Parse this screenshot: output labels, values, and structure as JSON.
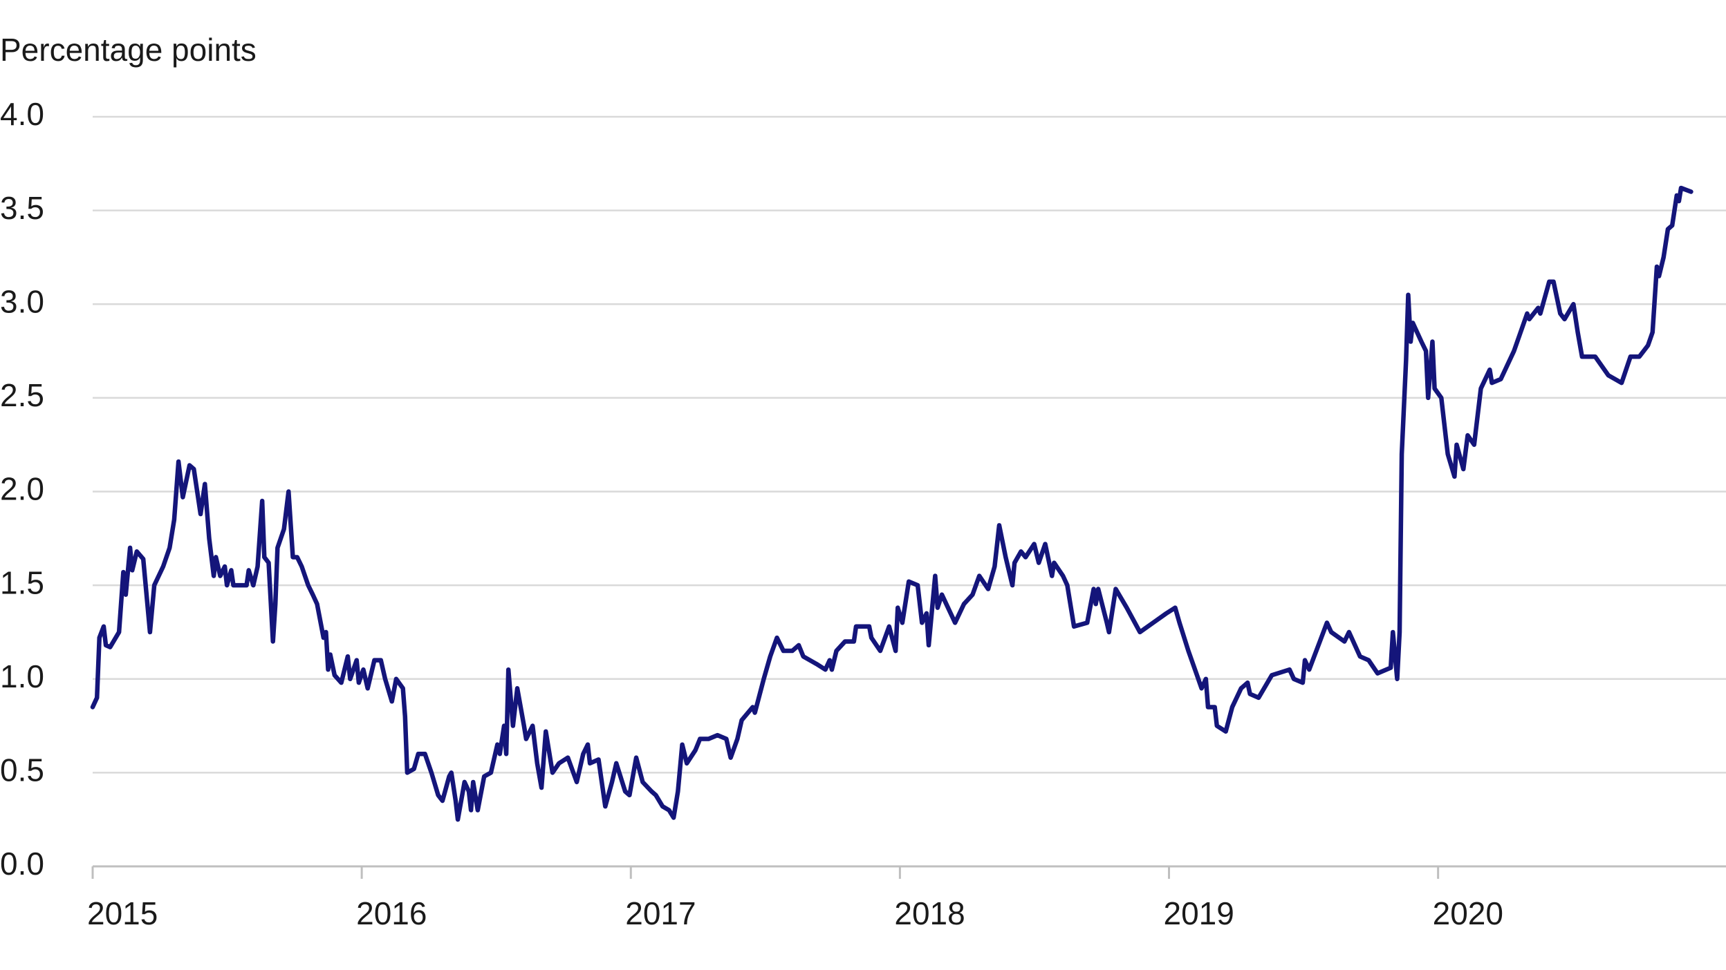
{
  "chart_data": {
    "type": "line",
    "y_axis_label": "Percentage points",
    "xlim": [
      2015,
      2021.07
    ],
    "xticks": [
      2015,
      2016,
      2017,
      2018,
      2019,
      2020
    ],
    "ylim": [
      0,
      4
    ],
    "yticks": [
      {
        "value": 0,
        "label": "0.0"
      },
      {
        "value": 0.5,
        "label": "0.5"
      },
      {
        "value": 1,
        "label": "1.0"
      },
      {
        "value": 1.5,
        "label": "1.5"
      },
      {
        "value": 2,
        "label": "2.0"
      },
      {
        "value": 2.5,
        "label": "2.5"
      },
      {
        "value": 3,
        "label": "3.0"
      },
      {
        "value": 3.5,
        "label": "3.5"
      },
      {
        "value": 4,
        "label": "4.0"
      }
    ],
    "grid": true,
    "x": [
      2015.0,
      2015.016,
      2015.025,
      2015.041,
      2015.049,
      2015.065,
      2015.098,
      2015.114,
      2015.123,
      2015.139,
      2015.147,
      2015.164,
      2015.188,
      2015.213,
      2015.229,
      2015.262,
      2015.286,
      2015.303,
      2015.319,
      2015.335,
      2015.36,
      2015.376,
      2015.401,
      2015.417,
      2015.433,
      2015.45,
      2015.458,
      2015.474,
      2015.491,
      2015.499,
      2015.515,
      2015.523,
      2015.548,
      2015.572,
      2015.58,
      2015.597,
      2015.613,
      2015.63,
      2015.638,
      2015.654,
      2015.67,
      2015.679,
      2015.687,
      2015.711,
      2015.728,
      2015.744,
      2015.76,
      2015.777,
      2015.801,
      2015.818,
      2015.834,
      2015.858,
      2015.867,
      2015.875,
      2015.883,
      2015.899,
      2015.924,
      2015.948,
      2015.957,
      2015.981,
      2015.989,
      2016.006,
      2016.022,
      2016.047,
      2016.071,
      2016.087,
      2016.112,
      2016.128,
      2016.153,
      2016.161,
      2016.169,
      2016.194,
      2016.21,
      2016.235,
      2016.259,
      2016.284,
      2016.3,
      2016.325,
      2016.333,
      2016.349,
      2016.357,
      2016.382,
      2016.398,
      2016.406,
      2016.414,
      2016.431,
      2016.455,
      2016.48,
      2016.504,
      2016.513,
      2016.529,
      2016.537,
      2016.545,
      2016.562,
      2016.578,
      2016.603,
      2016.611,
      2016.635,
      2016.652,
      2016.668,
      2016.684,
      2016.709,
      2016.733,
      2016.766,
      2016.799,
      2016.823,
      2016.84,
      2016.848,
      2016.88,
      2016.905,
      2016.93,
      2016.946,
      2016.979,
      2016.995,
      2017.02,
      2017.044,
      2017.077,
      2017.093,
      2017.118,
      2017.142,
      2017.159,
      2017.175,
      2017.191,
      2017.208,
      2017.24,
      2017.257,
      2017.289,
      2017.322,
      2017.355,
      2017.371,
      2017.396,
      2017.412,
      2017.453,
      2017.461,
      2017.494,
      2017.518,
      2017.543,
      2017.567,
      2017.6,
      2017.624,
      2017.641,
      2017.69,
      2017.723,
      2017.739,
      2017.747,
      2017.764,
      2017.796,
      2017.829,
      2017.837,
      2017.886,
      2017.894,
      2017.927,
      2017.96,
      2017.984,
      2017.992,
      2018.009,
      2018.033,
      2018.066,
      2018.082,
      2018.099,
      2018.107,
      2018.131,
      2018.14,
      2018.156,
      2018.205,
      2018.238,
      2018.27,
      2018.295,
      2018.328,
      2018.352,
      2018.369,
      2018.393,
      2018.418,
      2018.426,
      2018.45,
      2018.467,
      2018.499,
      2018.516,
      2018.54,
      2018.565,
      2018.573,
      2018.606,
      2018.622,
      2018.647,
      2018.696,
      2018.72,
      2018.728,
      2018.737,
      2018.769,
      2018.777,
      2018.802,
      2018.843,
      2018.892,
      2018.941,
      2018.99,
      2019.023,
      2019.039,
      2019.072,
      2019.104,
      2019.121,
      2019.137,
      2019.145,
      2019.17,
      2019.178,
      2019.211,
      2019.235,
      2019.268,
      2019.292,
      2019.301,
      2019.333,
      2019.382,
      2019.448,
      2019.464,
      2019.497,
      2019.505,
      2019.521,
      2019.587,
      2019.603,
      2019.652,
      2019.669,
      2019.71,
      2019.742,
      2019.775,
      2019.824,
      2019.832,
      2019.848,
      2019.857,
      2019.865,
      2019.881,
      2019.889,
      2019.898,
      2019.906,
      2019.938,
      2019.955,
      2019.963,
      2019.979,
      2019.987,
      2020.012,
      2020.036,
      2020.061,
      2020.069,
      2020.094,
      2020.11,
      2020.134,
      2020.159,
      2020.192,
      2020.2,
      2020.233,
      2020.282,
      2020.331,
      2020.339,
      2020.372,
      2020.38,
      2020.413,
      2020.429,
      2020.454,
      2020.47,
      2020.503,
      2020.519,
      2020.535,
      2020.584,
      2020.633,
      2020.682,
      2020.715,
      2020.748,
      2020.78,
      2020.797,
      2020.813,
      2020.821,
      2020.838,
      2020.854,
      2020.87,
      2020.887,
      2020.895,
      2020.903,
      2020.94
    ],
    "series": [
      {
        "color": "#14157a",
        "values": [
          0.85,
          0.9,
          1.22,
          1.28,
          1.18,
          1.17,
          1.25,
          1.57,
          1.45,
          1.7,
          1.58,
          1.68,
          1.64,
          1.25,
          1.5,
          1.6,
          1.7,
          1.85,
          2.16,
          1.97,
          2.14,
          2.12,
          1.88,
          2.04,
          1.75,
          1.55,
          1.65,
          1.55,
          1.6,
          1.5,
          1.58,
          1.5,
          1.5,
          1.5,
          1.58,
          1.5,
          1.6,
          1.95,
          1.65,
          1.62,
          1.2,
          1.4,
          1.7,
          1.8,
          2.0,
          1.65,
          1.65,
          1.6,
          1.5,
          1.45,
          1.4,
          1.22,
          1.25,
          1.05,
          1.13,
          1.02,
          0.98,
          1.12,
          1.0,
          1.1,
          0.98,
          1.05,
          0.95,
          1.1,
          1.1,
          1.0,
          0.88,
          1.0,
          0.95,
          0.8,
          0.5,
          0.52,
          0.6,
          0.6,
          0.5,
          0.38,
          0.35,
          0.48,
          0.5,
          0.35,
          0.25,
          0.45,
          0.4,
          0.3,
          0.45,
          0.3,
          0.48,
          0.5,
          0.65,
          0.6,
          0.75,
          0.6,
          1.05,
          0.75,
          0.95,
          0.75,
          0.68,
          0.75,
          0.55,
          0.42,
          0.72,
          0.5,
          0.55,
          0.58,
          0.45,
          0.6,
          0.65,
          0.55,
          0.57,
          0.32,
          0.45,
          0.55,
          0.4,
          0.38,
          0.58,
          0.45,
          0.4,
          0.38,
          0.32,
          0.3,
          0.26,
          0.4,
          0.65,
          0.55,
          0.62,
          0.68,
          0.68,
          0.7,
          0.68,
          0.58,
          0.68,
          0.78,
          0.85,
          0.82,
          1.0,
          1.12,
          1.22,
          1.15,
          1.15,
          1.18,
          1.12,
          1.08,
          1.05,
          1.1,
          1.05,
          1.15,
          1.2,
          1.2,
          1.28,
          1.28,
          1.22,
          1.15,
          1.28,
          1.15,
          1.38,
          1.3,
          1.52,
          1.5,
          1.3,
          1.35,
          1.18,
          1.55,
          1.38,
          1.45,
          1.3,
          1.4,
          1.45,
          1.55,
          1.48,
          1.6,
          1.82,
          1.65,
          1.5,
          1.62,
          1.68,
          1.65,
          1.72,
          1.62,
          1.72,
          1.55,
          1.62,
          1.55,
          1.5,
          1.28,
          1.3,
          1.48,
          1.4,
          1.48,
          1.3,
          1.25,
          1.48,
          1.38,
          1.25,
          1.3,
          1.35,
          1.38,
          1.3,
          1.15,
          1.02,
          0.95,
          1.0,
          0.85,
          0.85,
          0.75,
          0.72,
          0.85,
          0.95,
          0.98,
          0.92,
          0.9,
          1.02,
          1.05,
          1.0,
          0.98,
          1.1,
          1.05,
          1.3,
          1.25,
          1.2,
          1.25,
          1.12,
          1.1,
          1.03,
          1.06,
          1.25,
          1.0,
          1.25,
          2.2,
          2.7,
          3.05,
          2.8,
          2.9,
          2.8,
          2.75,
          2.5,
          2.8,
          2.55,
          2.5,
          2.2,
          2.08,
          2.25,
          2.12,
          2.3,
          2.25,
          2.55,
          2.65,
          2.58,
          2.6,
          2.75,
          2.95,
          2.92,
          2.98,
          2.95,
          3.12,
          3.12,
          2.95,
          2.92,
          3.0,
          2.85,
          2.72,
          2.72,
          2.62,
          2.58,
          2.72,
          2.72,
          2.78,
          2.85,
          3.2,
          3.15,
          3.25,
          3.4,
          3.42,
          3.58,
          3.55,
          3.62,
          3.6
        ]
      }
    ]
  }
}
